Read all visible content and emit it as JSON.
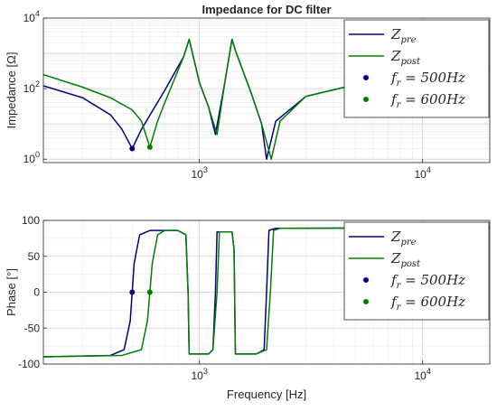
{
  "chart_data": [
    {
      "type": "line",
      "title": "Impedance for DC filter",
      "xlabel": "",
      "ylabel": "Impedance [Ω]",
      "xscale": "log",
      "yscale": "log",
      "xlim": [
        200,
        20000
      ],
      "ylim": [
        0.8,
        10000
      ],
      "grid": true,
      "legend_position": "top-right",
      "x_ticks": [
        {
          "value": 1000,
          "label": "10^3"
        },
        {
          "value": 10000,
          "label": "10^4"
        }
      ],
      "y_ticks": [
        {
          "value": 1,
          "label": "10^0"
        },
        {
          "value": 100,
          "label": "10^2"
        },
        {
          "value": 10000,
          "label": "10^4"
        }
      ],
      "series": [
        {
          "name": "Z_pre",
          "color": "#00007f",
          "x": [
            200,
            300,
            400,
            450,
            500,
            550,
            700,
            850,
            900,
            1000,
            1100,
            1180,
            1300,
            1400,
            1450,
            1700,
            1900,
            2000,
            2200,
            3000,
            5000,
            10000,
            20000
          ],
          "y": [
            120,
            55,
            18,
            7,
            2,
            7,
            90,
            800,
            2500,
            150,
            30,
            5,
            150,
            2500,
            1200,
            80,
            10,
            1,
            12,
            60,
            130,
            300,
            400
          ]
        },
        {
          "name": "Z_post",
          "color": "#007f00",
          "x": [
            200,
            300,
            400,
            500,
            550,
            600,
            650,
            700,
            850,
            900,
            1000,
            1100,
            1200,
            1300,
            1400,
            1450,
            1700,
            1900,
            2100,
            2300,
            3000,
            5000,
            10000,
            20000
          ],
          "y": [
            250,
            110,
            55,
            25,
            12,
            2.2,
            12,
            40,
            800,
            2500,
            150,
            30,
            5,
            150,
            2500,
            1200,
            80,
            10,
            1,
            12,
            60,
            130,
            300,
            400
          ]
        },
        {
          "name": "f_r = 500Hz",
          "color": "#00007f",
          "marker": "point",
          "x": [
            500
          ],
          "y": [
            2
          ]
        },
        {
          "name": "f_r = 600Hz",
          "color": "#007f00",
          "marker": "point",
          "x": [
            600
          ],
          "y": [
            2.2
          ]
        }
      ]
    },
    {
      "type": "line",
      "title": "",
      "xlabel": "Frequency [Hz]",
      "ylabel": "Phase [°]",
      "xscale": "log",
      "yscale": "linear",
      "xlim": [
        200,
        20000
      ],
      "ylim": [
        -100,
        100
      ],
      "grid": true,
      "legend_position": "top-right",
      "x_ticks": [
        {
          "value": 1000,
          "label": "10^3"
        },
        {
          "value": 10000,
          "label": "10^4"
        }
      ],
      "y_ticks": [
        {
          "value": 100,
          "label": "100"
        },
        {
          "value": 50,
          "label": "50"
        },
        {
          "value": 0,
          "label": "0"
        },
        {
          "value": -50,
          "label": "-50"
        },
        {
          "value": -100,
          "label": "-100"
        }
      ],
      "series": [
        {
          "name": "Z_pre",
          "color": "#00007f",
          "x": [
            200,
            400,
            460,
            490,
            500,
            510,
            540,
            600,
            800,
            870,
            890,
            900,
            1100,
            1150,
            1180,
            1200,
            1400,
            1430,
            1450,
            1800,
            1950,
            2000,
            2050,
            2200,
            20000
          ],
          "y": [
            -90,
            -88,
            -80,
            -40,
            0,
            40,
            80,
            86,
            86,
            80,
            0,
            -86,
            -86,
            -80,
            0,
            84,
            84,
            60,
            -86,
            -86,
            -80,
            0,
            86,
            89,
            90
          ]
        },
        {
          "name": "Z_post",
          "color": "#007f00",
          "x": [
            200,
            450,
            550,
            585,
            600,
            615,
            650,
            700,
            800,
            870,
            890,
            900,
            1100,
            1150,
            1200,
            1230,
            1400,
            1430,
            1450,
            1800,
            2000,
            2080,
            2150,
            2300,
            20000
          ],
          "y": [
            -90,
            -88,
            -80,
            -40,
            0,
            40,
            80,
            86,
            86,
            80,
            0,
            -86,
            -86,
            -80,
            0,
            84,
            84,
            60,
            -86,
            -86,
            -80,
            0,
            86,
            89,
            90
          ]
        },
        {
          "name": "f_r = 500Hz",
          "color": "#00007f",
          "marker": "point",
          "x": [
            500
          ],
          "y": [
            0
          ]
        },
        {
          "name": "f_r = 600Hz",
          "color": "#007f00",
          "marker": "point",
          "x": [
            600
          ],
          "y": [
            0
          ]
        }
      ]
    }
  ]
}
